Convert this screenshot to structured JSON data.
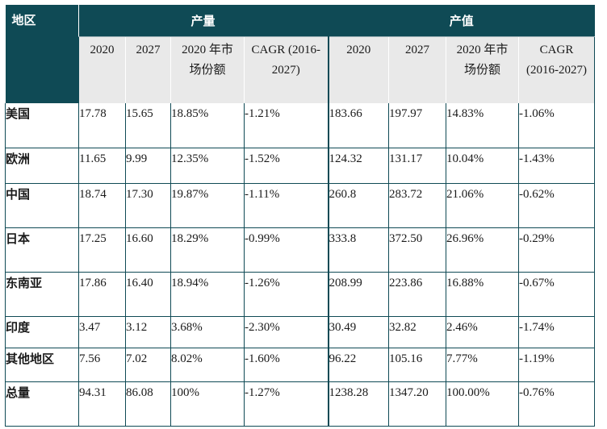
{
  "header": {
    "region": "地区",
    "group_output": "产量",
    "group_value": "产值"
  },
  "columns": {
    "output": [
      "2020",
      "2027",
      "2020 年市场份额",
      "CAGR (2016-2027)"
    ],
    "value": [
      "2020",
      "2027",
      "2020 年市场份额",
      "CAGR (2016-2027)"
    ]
  },
  "rows": [
    {
      "region": "美国",
      "cells": [
        "17.78",
        "15.65",
        "18.85%",
        "-1.21%",
        "183.66",
        "197.97",
        "14.83%",
        "-1.06%"
      ]
    },
    {
      "region": "欧洲",
      "cells": [
        "11.65",
        "9.99",
        "12.35%",
        "-1.52%",
        "124.32",
        "131.17",
        "10.04%",
        "-1.43%"
      ]
    },
    {
      "region": "中国",
      "cells": [
        "18.74",
        "17.30",
        "19.87%",
        "-1.11%",
        "260.8",
        "283.72",
        "21.06%",
        "-0.62%"
      ]
    },
    {
      "region": "日本",
      "cells": [
        "17.25",
        "16.60",
        "18.29%",
        "-0.99%",
        "333.8",
        "372.50",
        "26.96%",
        "-0.29%"
      ]
    },
    {
      "region": "东南亚",
      "cells": [
        "17.86",
        "16.40",
        "18.94%",
        "-1.26%",
        "208.99",
        "223.86",
        "16.88%",
        "-0.67%"
      ]
    },
    {
      "region": "印度",
      "cells": [
        "3.47",
        "3.12",
        "3.68%",
        "-2.30%",
        "30.49",
        "32.82",
        "2.46%",
        "-1.74%"
      ]
    },
    {
      "region": "其他地区",
      "cells": [
        "7.56",
        "7.02",
        "8.02%",
        "-1.60%",
        "96.22",
        "105.16",
        "7.77%",
        "-1.19%"
      ]
    },
    {
      "region": "总量",
      "cells": [
        "94.31",
        "86.08",
        "100%",
        "-1.27%",
        "1238.28",
        "1347.20",
        "100.00%",
        "-0.76%"
      ]
    }
  ]
}
